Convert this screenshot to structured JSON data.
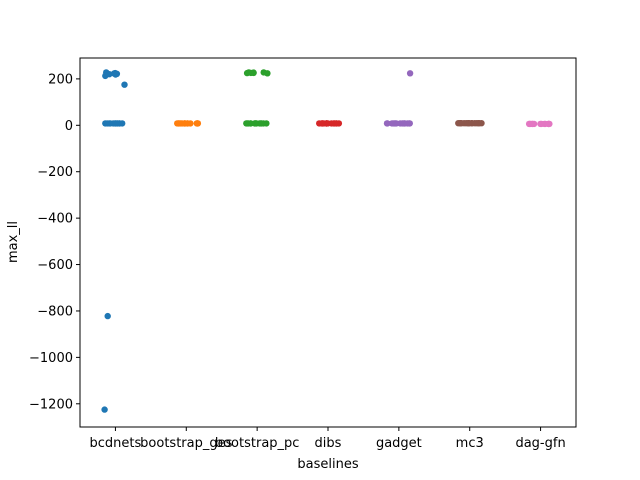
{
  "chart_data": {
    "type": "scatter",
    "subtype": "strip",
    "title": "",
    "xlabel": "baselines",
    "ylabel": "max_ll",
    "categories": [
      "bcdnets",
      "bootstrap_ges",
      "bootstrap_pc",
      "dibs",
      "gadget",
      "mc3",
      "dag-gfn"
    ],
    "ylim": [
      -1300,
      290
    ],
    "yticks": [
      200,
      0,
      -200,
      -400,
      -600,
      -800,
      -1000,
      -1200
    ],
    "ytick_labels": [
      "200",
      "0",
      "−200",
      "−400",
      "−600",
      "−800",
      "−1000",
      "−1200"
    ],
    "grid": false,
    "legend": "none",
    "colors": [
      "#1f77b4",
      "#ff7f0e",
      "#2ca02c",
      "#d62728",
      "#9467bd",
      "#8c564b",
      "#e377c2"
    ],
    "series": [
      {
        "category": "bcdnets",
        "values": [
          225,
          222,
          228,
          220,
          223,
          219,
          213,
          175,
          8,
          8,
          8,
          8,
          8,
          8,
          8,
          8,
          8,
          8,
          8,
          8,
          -822,
          -1225
        ]
      },
      {
        "category": "bootstrap_ges",
        "values": [
          8,
          8,
          8,
          8,
          8,
          8,
          8,
          8,
          8,
          8,
          8,
          8,
          8,
          8,
          8,
          8
        ]
      },
      {
        "category": "bootstrap_pc",
        "values": [
          228,
          228,
          226,
          227,
          225,
          224,
          226,
          8,
          8,
          8,
          8,
          8,
          8,
          8,
          8,
          8,
          8,
          8,
          8,
          8,
          8
        ]
      },
      {
        "category": "dibs",
        "values": [
          8,
          8,
          8,
          8,
          8,
          8,
          8,
          8,
          8,
          8,
          8,
          8,
          8,
          8,
          8,
          8
        ]
      },
      {
        "category": "gadget",
        "values": [
          224,
          8,
          8,
          8,
          8,
          8,
          8,
          8,
          8,
          8,
          8,
          8,
          8,
          8,
          8,
          8
        ]
      },
      {
        "category": "mc3",
        "values": [
          9,
          9,
          9,
          9,
          9,
          9,
          9,
          9,
          9,
          9,
          9,
          9,
          9,
          9,
          9,
          9
        ]
      },
      {
        "category": "dag-gfn",
        "values": [
          6,
          6,
          6,
          6,
          6,
          6,
          6,
          6,
          6,
          6,
          6,
          6,
          6,
          6
        ]
      }
    ]
  }
}
